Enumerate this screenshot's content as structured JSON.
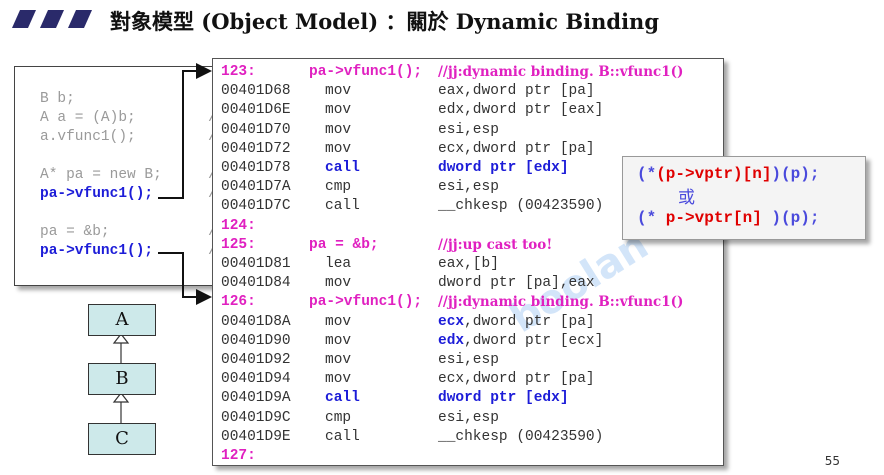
{
  "title": "對象模型 (Object Model) ：關於 Dynamic Binding",
  "page_number": "55",
  "watermark": "boolan 博覽網",
  "source_code": [
    {
      "text": "B b;",
      "comment": ""
    },
    {
      "text": "A a = (A)b;",
      "comment": "//"
    },
    {
      "text": "a.vfunc1();",
      "comment": "//"
    },
    {
      "text": "",
      "comment": ""
    },
    {
      "text": "A* pa = new B;",
      "comment": "//"
    },
    {
      "text": "pa->vfunc1();",
      "comment": "//"
    },
    {
      "text": "",
      "comment": ""
    },
    {
      "text": "pa = &b;",
      "comment": "//"
    },
    {
      "text": "pa->vfunc1();",
      "comment": "//"
    }
  ],
  "assembly": [
    {
      "type": "label",
      "num": "123:",
      "src": "pa->vfunc1();",
      "comment": "//jj:dynamic binding. B::vfunc1()"
    },
    {
      "type": "instr",
      "addr": "00401D68",
      "op": "mov",
      "args": "eax,dword ptr [pa]"
    },
    {
      "type": "instr",
      "addr": "00401D6E",
      "op": "mov",
      "args": "edx,dword ptr [eax]"
    },
    {
      "type": "instr",
      "addr": "00401D70",
      "op": "mov",
      "args": "esi,esp"
    },
    {
      "type": "instr",
      "addr": "00401D72",
      "op": "mov",
      "args": "ecx,dword ptr [pa]"
    },
    {
      "type": "instr",
      "addr": "00401D78",
      "op": "call",
      "args": "dword ptr [edx]",
      "highlight": true
    },
    {
      "type": "instr",
      "addr": "00401D7A",
      "op": "cmp",
      "args": "esi,esp"
    },
    {
      "type": "instr",
      "addr": "00401D7C",
      "op": "call",
      "args": "__chkesp (00423590)"
    },
    {
      "type": "label",
      "num": "124:",
      "src": "",
      "comment": ""
    },
    {
      "type": "label",
      "num": "125:",
      "src": "pa = &b;",
      "comment": "//jj:up cast too!"
    },
    {
      "type": "instr",
      "addr": "00401D81",
      "op": "lea",
      "args": "eax,[b]"
    },
    {
      "type": "instr",
      "addr": "00401D84",
      "op": "mov",
      "args": "dword ptr [pa],eax"
    },
    {
      "type": "label",
      "num": "126:",
      "src": "pa->vfunc1();",
      "comment": "//jj:dynamic binding. B::vfunc1()"
    },
    {
      "type": "instr",
      "addr": "00401D8A",
      "op": "mov",
      "args_hl": "ecx",
      "args": ",dword ptr [pa]"
    },
    {
      "type": "instr",
      "addr": "00401D90",
      "op": "mov",
      "args_hl": "edx",
      "args": ",dword ptr [ecx]"
    },
    {
      "type": "instr",
      "addr": "00401D92",
      "op": "mov",
      "args": "esi,esp"
    },
    {
      "type": "instr",
      "addr": "00401D94",
      "op": "mov",
      "args": "ecx,dword ptr [pa]"
    },
    {
      "type": "instr",
      "addr": "00401D9A",
      "op": "call",
      "args": "dword ptr [edx]",
      "highlight": true
    },
    {
      "type": "instr",
      "addr": "00401D9C",
      "op": "cmp",
      "args": "esi,esp"
    },
    {
      "type": "instr",
      "addr": "00401D9E",
      "op": "call",
      "args": "__chkesp (00423590)"
    },
    {
      "type": "label",
      "num": "127:",
      "src": "",
      "comment": ""
    }
  ],
  "formula": {
    "line1_open": "(*",
    "line1_expr": "(p->vptr)[n]",
    "line1_close": ")(p);",
    "or": "或",
    "line2_open": "(*",
    "line2_expr": " p->vptr[n] ",
    "line2_close": ")(p);"
  },
  "class_hierarchy": [
    "A",
    "B",
    "C"
  ],
  "colors": {
    "label": "#e020c0",
    "keyword": "#1c1cd8",
    "formula_red": "#e00000",
    "class_fill": "#cde9ea"
  }
}
